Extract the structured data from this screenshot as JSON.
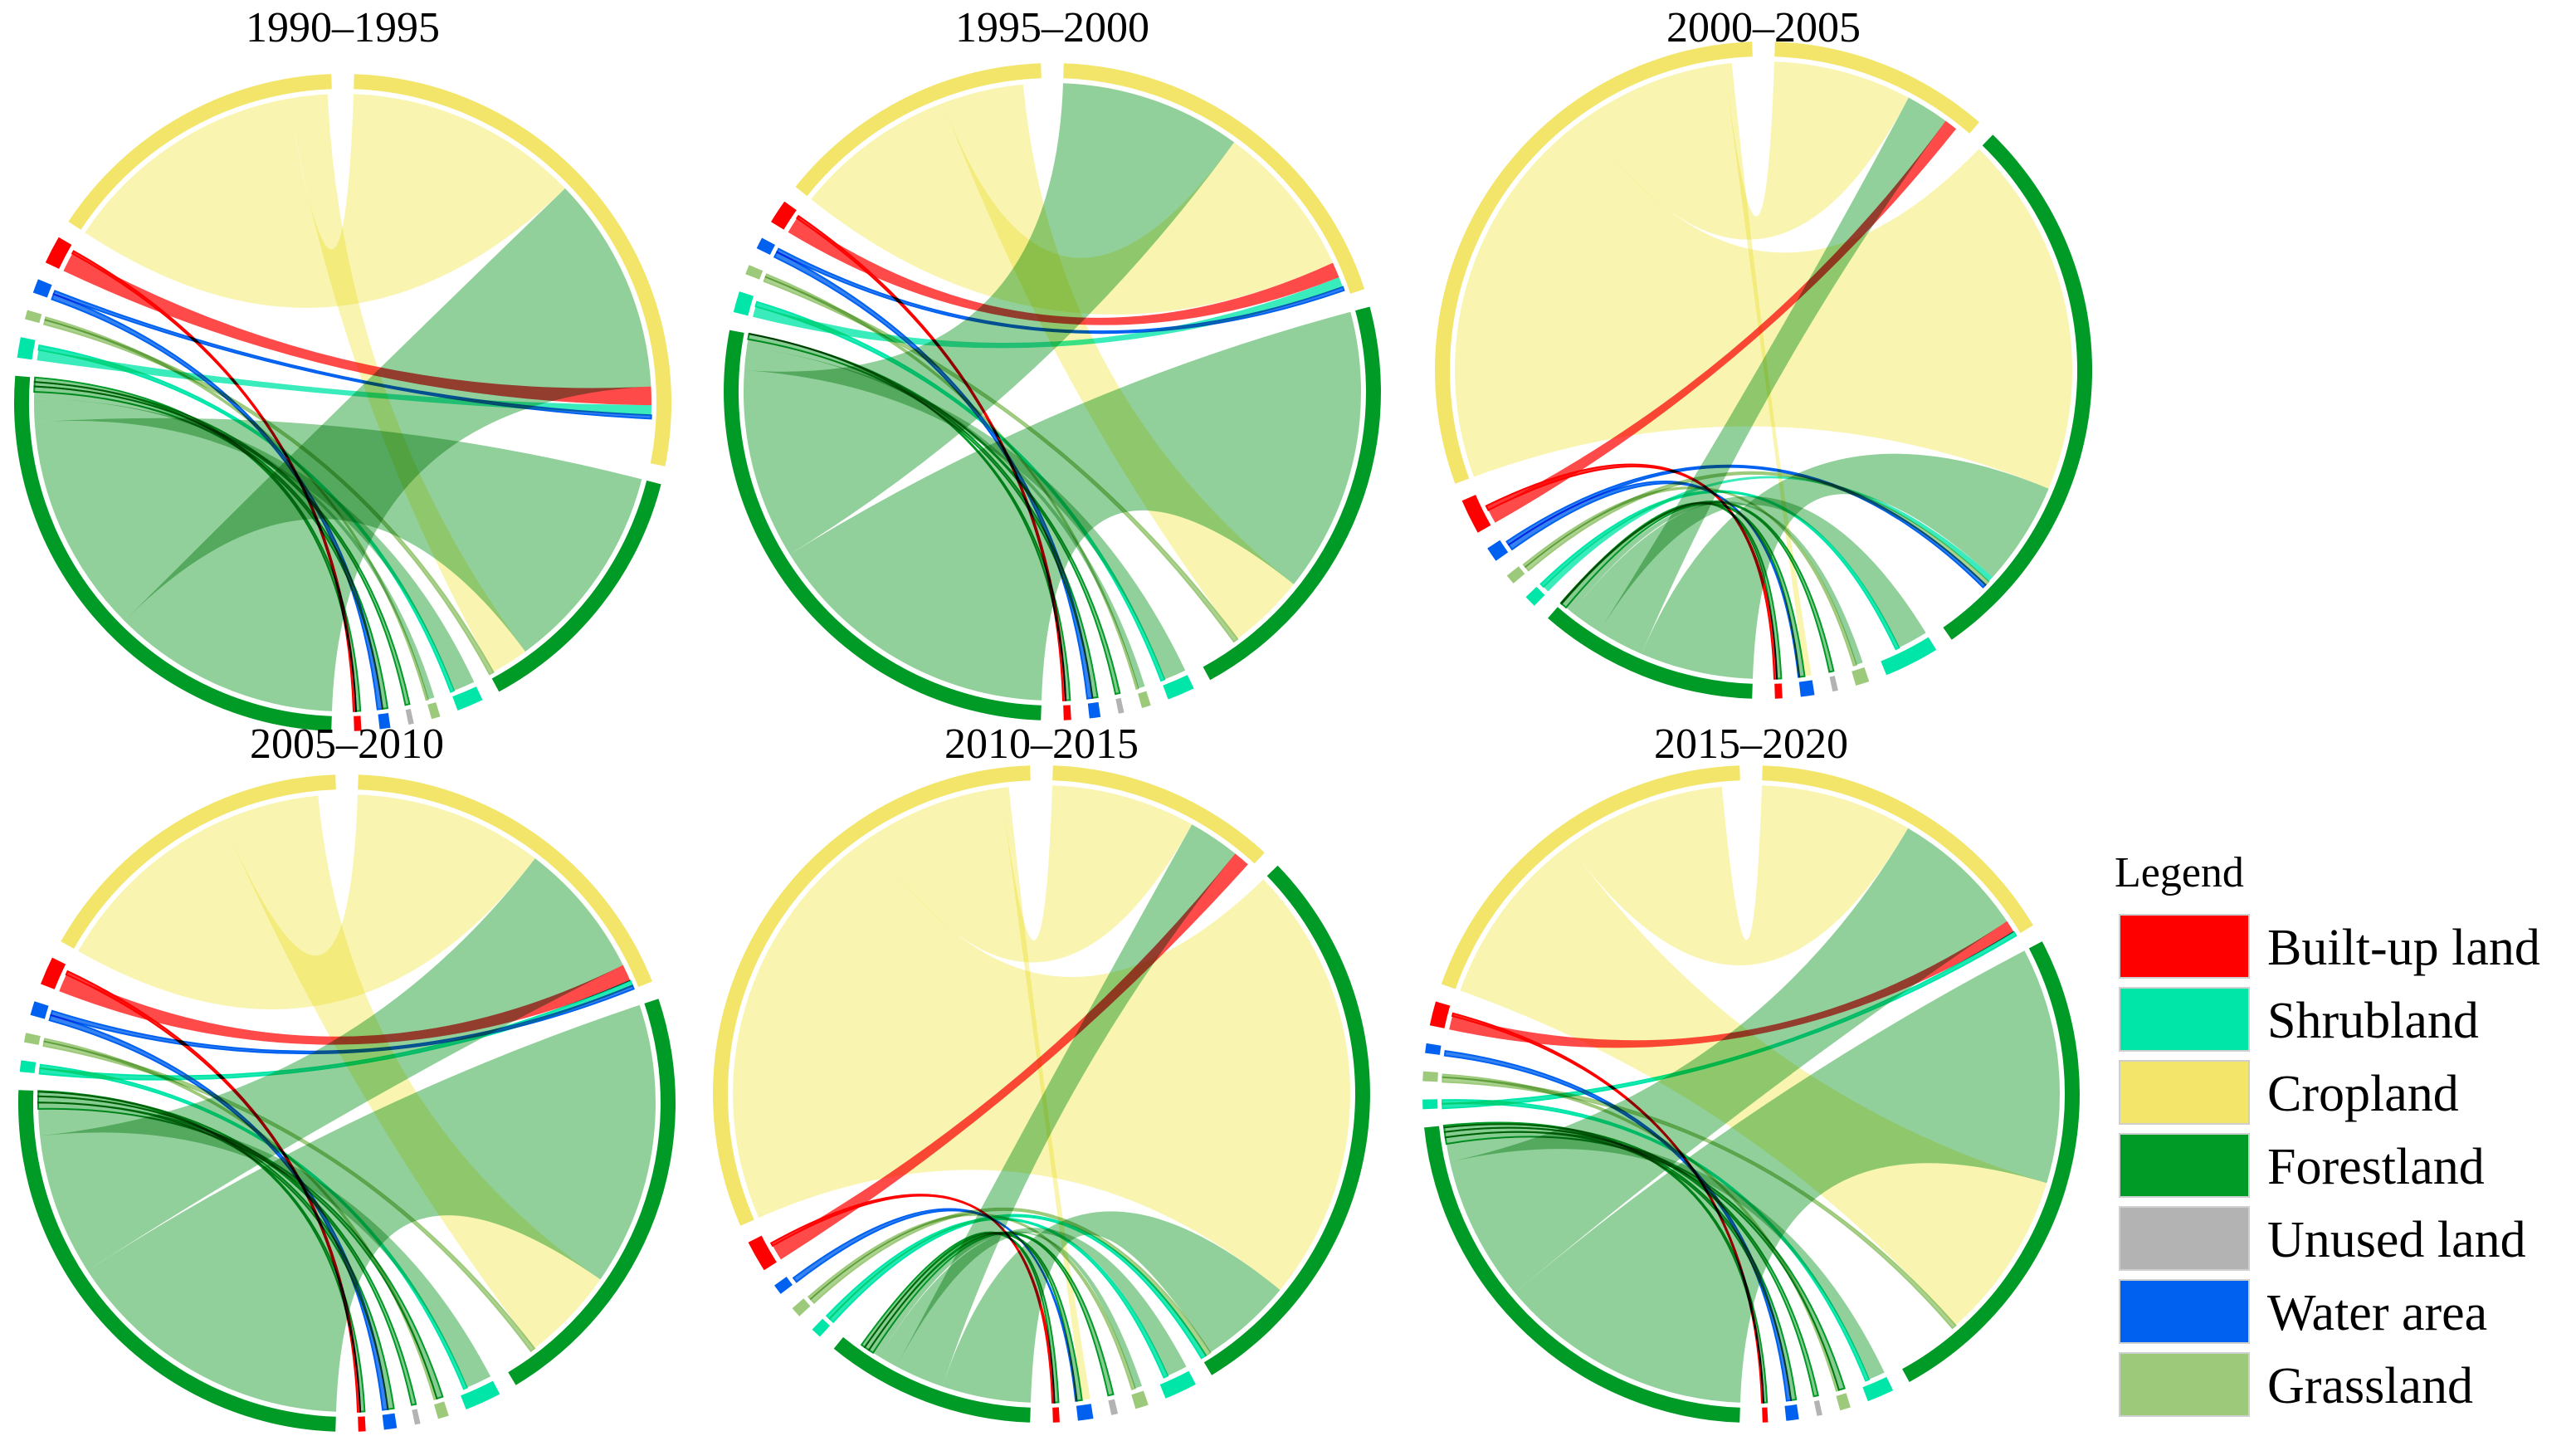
{
  "figure": {
    "legend_title": "Legend"
  },
  "chart_data": {
    "type": "chord",
    "categories": [
      {
        "key": "built",
        "name": "Built-up land",
        "color": "#ff0000",
        "ribbon_color": "#ff2a2a"
      },
      {
        "key": "shrub",
        "name": "Shrubland",
        "color": "#00e6a8",
        "ribbon_color": "#18e8b0"
      },
      {
        "key": "crop",
        "name": "Cropland",
        "color": "#f2e56a",
        "ribbon_color": "#f8f3a3"
      },
      {
        "key": "forest",
        "name": "Forestland",
        "color": "#009a27",
        "ribbon_color": "#7fc88a"
      },
      {
        "key": "unused",
        "name": "Unused land",
        "color": "#b3b3b3",
        "ribbon_color": "#c4c4c4"
      },
      {
        "key": "water",
        "name": "Water area",
        "color": "#0060f0",
        "ribbon_color": "#2a7cf0"
      },
      {
        "key": "grass",
        "name": "Grassland",
        "color": "#9cc97a",
        "ribbon_color": "#a8d08a"
      }
    ],
    "panels": [
      {
        "title": "1990–1995",
        "layout": "circle-right",
        "left_order": [
          "crop",
          "built",
          "water",
          "grass",
          "shrub",
          "forest"
        ],
        "right_order": [
          "crop",
          "forest",
          "shrub",
          "grass",
          "unused",
          "water",
          "built"
        ],
        "left_sizes": {
          "crop": 33,
          "built": 3,
          "water": 1.5,
          "grass": 1,
          "shrub": 2.2,
          "forest": 56
        },
        "right_sizes": {
          "crop": 63,
          "forest": 30,
          "shrub": 3,
          "grass": 1,
          "unused": 0.6,
          "water": 1.2,
          "built": 0.8
        },
        "flows": [
          {
            "from": "crop",
            "to": "crop",
            "value": 28
          },
          {
            "from": "crop",
            "to": "forest",
            "value": 4.5
          },
          {
            "from": "forest",
            "to": "crop",
            "value": 26
          },
          {
            "from": "forest",
            "to": "forest",
            "value": 25
          },
          {
            "from": "forest",
            "to": "shrub",
            "value": 2.6
          },
          {
            "from": "forest",
            "to": "grass",
            "value": 0.8
          },
          {
            "from": "forest",
            "to": "unused",
            "value": 0.5
          },
          {
            "from": "forest",
            "to": "water",
            "value": 0.6
          },
          {
            "from": "forest",
            "to": "built",
            "value": 0.5
          },
          {
            "from": "built",
            "to": "crop",
            "value": 2.2
          },
          {
            "from": "built",
            "to": "built",
            "value": 0.3
          },
          {
            "from": "water",
            "to": "water",
            "value": 0.6
          },
          {
            "from": "water",
            "to": "crop",
            "value": 0.4
          },
          {
            "from": "grass",
            "to": "forest",
            "value": 0.5
          },
          {
            "from": "grass",
            "to": "grass",
            "value": 0.3
          },
          {
            "from": "shrub",
            "to": "crop",
            "value": 1.2
          },
          {
            "from": "shrub",
            "to": "shrub",
            "value": 0.5
          }
        ]
      },
      {
        "title": "1995–2000",
        "layout": "circle-right",
        "left_order": [
          "crop",
          "built",
          "water",
          "grass",
          "shrub",
          "forest"
        ],
        "right_order": [
          "crop",
          "forest",
          "shrub",
          "grass",
          "unused",
          "water",
          "built"
        ],
        "left_sizes": {
          "crop": 29,
          "built": 2.5,
          "water": 1.2,
          "grass": 1,
          "shrub": 2.2,
          "forest": 58
        },
        "right_sizes": {
          "crop": 43,
          "forest": 47,
          "shrub": 3,
          "grass": 1,
          "unused": 0.6,
          "water": 1.2,
          "built": 0.8
        },
        "flows": [
          {
            "from": "crop",
            "to": "crop",
            "value": 18
          },
          {
            "from": "crop",
            "to": "forest",
            "value": 9
          },
          {
            "from": "forest",
            "to": "crop",
            "value": 21
          },
          {
            "from": "forest",
            "to": "forest",
            "value": 33
          },
          {
            "from": "forest",
            "to": "shrub",
            "value": 2.6
          },
          {
            "from": "forest",
            "to": "grass",
            "value": 0.8
          },
          {
            "from": "forest",
            "to": "unused",
            "value": 0.5
          },
          {
            "from": "forest",
            "to": "water",
            "value": 0.6
          },
          {
            "from": "forest",
            "to": "built",
            "value": 0.5
          },
          {
            "from": "built",
            "to": "crop",
            "value": 1.8
          },
          {
            "from": "built",
            "to": "built",
            "value": 0.3
          },
          {
            "from": "water",
            "to": "water",
            "value": 0.6
          },
          {
            "from": "water",
            "to": "crop",
            "value": 0.4
          },
          {
            "from": "grass",
            "to": "forest",
            "value": 0.5
          },
          {
            "from": "grass",
            "to": "grass",
            "value": 0.3
          },
          {
            "from": "shrub",
            "to": "crop",
            "value": 1.2
          },
          {
            "from": "shrub",
            "to": "shrub",
            "value": 0.5
          }
        ]
      },
      {
        "title": "2000–2005",
        "layout": "circle-left",
        "left_order": [
          "crop",
          "built",
          "water",
          "grass",
          "shrub",
          "forest"
        ],
        "right_order": [
          "crop",
          "forest",
          "shrub",
          "grass",
          "unused",
          "water",
          "built"
        ],
        "left_sizes": {
          "crop": 61,
          "built": 3.5,
          "water": 1.5,
          "grass": 1,
          "shrub": 1.2,
          "forest": 22
        },
        "right_sizes": {
          "crop": 24,
          "forest": 62,
          "shrub": 6,
          "grass": 1.5,
          "unused": 0.6,
          "water": 1.5,
          "built": 0.8
        },
        "flows": [
          {
            "from": "crop",
            "to": "crop",
            "value": 16
          },
          {
            "from": "crop",
            "to": "forest",
            "value": 42
          },
          {
            "from": "crop",
            "to": "water",
            "value": 0.8
          },
          {
            "from": "forest",
            "to": "crop",
            "value": 5
          },
          {
            "from": "forest",
            "to": "forest",
            "value": 12
          },
          {
            "from": "forest",
            "to": "shrub",
            "value": 3.5
          },
          {
            "from": "forest",
            "to": "grass",
            "value": 0.8
          },
          {
            "from": "forest",
            "to": "unused",
            "value": 0.5
          },
          {
            "from": "forest",
            "to": "water",
            "value": 0.6
          },
          {
            "from": "forest",
            "to": "built",
            "value": 0.5
          },
          {
            "from": "built",
            "to": "crop",
            "value": 1.5
          },
          {
            "from": "built",
            "to": "built",
            "value": 0.5
          },
          {
            "from": "water",
            "to": "water",
            "value": 0.6
          },
          {
            "from": "water",
            "to": "forest",
            "value": 0.4
          },
          {
            "from": "grass",
            "to": "forest",
            "value": 0.5
          },
          {
            "from": "grass",
            "to": "grass",
            "value": 0.3
          },
          {
            "from": "shrub",
            "to": "forest",
            "value": 0.7
          },
          {
            "from": "shrub",
            "to": "shrub",
            "value": 0.4
          }
        ]
      },
      {
        "title": "2005–2010",
        "layout": "circle-right",
        "left_order": [
          "crop",
          "built",
          "water",
          "grass",
          "shrub",
          "forest"
        ],
        "right_order": [
          "crop",
          "forest",
          "shrub",
          "grass",
          "unused",
          "water",
          "built"
        ],
        "left_sizes": {
          "crop": 35,
          "built": 3,
          "water": 1.5,
          "grass": 1,
          "shrub": 1.2,
          "forest": 54
        },
        "right_sizes": {
          "crop": 41,
          "forest": 48,
          "shrub": 4,
          "grass": 1.2,
          "unused": 0.6,
          "water": 1.4,
          "built": 0.8
        },
        "flows": [
          {
            "from": "crop",
            "to": "crop",
            "value": 22
          },
          {
            "from": "crop",
            "to": "forest",
            "value": 11
          },
          {
            "from": "forest",
            "to": "crop",
            "value": 16
          },
          {
            "from": "forest",
            "to": "forest",
            "value": 33
          },
          {
            "from": "forest",
            "to": "shrub",
            "value": 3
          },
          {
            "from": "forest",
            "to": "grass",
            "value": 0.7
          },
          {
            "from": "forest",
            "to": "unused",
            "value": 0.5
          },
          {
            "from": "forest",
            "to": "water",
            "value": 0.7
          },
          {
            "from": "forest",
            "to": "built",
            "value": 0.5
          },
          {
            "from": "built",
            "to": "crop",
            "value": 2
          },
          {
            "from": "built",
            "to": "built",
            "value": 0.4
          },
          {
            "from": "water",
            "to": "water",
            "value": 0.6
          },
          {
            "from": "water",
            "to": "crop",
            "value": 0.5
          },
          {
            "from": "grass",
            "to": "forest",
            "value": 0.5
          },
          {
            "from": "grass",
            "to": "grass",
            "value": 0.3
          },
          {
            "from": "shrub",
            "to": "crop",
            "value": 0.6
          },
          {
            "from": "shrub",
            "to": "shrub",
            "value": 0.4
          }
        ]
      },
      {
        "title": "2010–2015",
        "layout": "circle-left",
        "left_order": [
          "crop",
          "built",
          "water",
          "grass",
          "shrub",
          "forest"
        ],
        "right_order": [
          "crop",
          "forest",
          "shrub",
          "grass",
          "unused",
          "water",
          "built"
        ],
        "left_sizes": {
          "crop": 60,
          "built": 3,
          "water": 1,
          "grass": 1,
          "shrub": 1,
          "forest": 20
        },
        "right_sizes": {
          "crop": 21,
          "forest": 53,
          "shrub": 3,
          "grass": 1.2,
          "unused": 0.6,
          "water": 1.4,
          "built": 0.6
        },
        "flows": [
          {
            "from": "crop",
            "to": "crop",
            "value": 14
          },
          {
            "from": "crop",
            "to": "forest",
            "value": 43
          },
          {
            "from": "crop",
            "to": "water",
            "value": 0.8
          },
          {
            "from": "forest",
            "to": "crop",
            "value": 5
          },
          {
            "from": "forest",
            "to": "forest",
            "value": 9
          },
          {
            "from": "forest",
            "to": "shrub",
            "value": 2
          },
          {
            "from": "forest",
            "to": "grass",
            "value": 0.7
          },
          {
            "from": "forest",
            "to": "unused",
            "value": 0.5
          },
          {
            "from": "forest",
            "to": "water",
            "value": 0.5
          },
          {
            "from": "forest",
            "to": "built",
            "value": 0.4
          },
          {
            "from": "built",
            "to": "crop",
            "value": 1.6
          },
          {
            "from": "built",
            "to": "built",
            "value": 0.3
          },
          {
            "from": "water",
            "to": "water",
            "value": 0.5
          },
          {
            "from": "grass",
            "to": "forest",
            "value": 0.5
          },
          {
            "from": "grass",
            "to": "grass",
            "value": 0.3
          },
          {
            "from": "shrub",
            "to": "forest",
            "value": 0.5
          },
          {
            "from": "shrub",
            "to": "shrub",
            "value": 0.4
          }
        ]
      },
      {
        "title": "2015–2020",
        "layout": "circle-right",
        "left_order": [
          "crop",
          "built",
          "water",
          "grass",
          "shrub",
          "forest"
        ],
        "right_order": [
          "crop",
          "forest",
          "shrub",
          "grass",
          "unused",
          "water",
          "built"
        ],
        "left_sizes": {
          "crop": 40,
          "built": 2.5,
          "water": 1,
          "grass": 1,
          "shrub": 1,
          "forest": 48
        },
        "right_sizes": {
          "crop": 36,
          "forest": 56,
          "shrub": 3,
          "grass": 1.2,
          "unused": 0.6,
          "water": 1.4,
          "built": 0.6
        },
        "flows": [
          {
            "from": "crop",
            "to": "crop",
            "value": 18
          },
          {
            "from": "crop",
            "to": "forest",
            "value": 20
          },
          {
            "from": "forest",
            "to": "crop",
            "value": 16
          },
          {
            "from": "forest",
            "to": "forest",
            "value": 28
          },
          {
            "from": "forest",
            "to": "shrub",
            "value": 2
          },
          {
            "from": "forest",
            "to": "grass",
            "value": 0.7
          },
          {
            "from": "forest",
            "to": "unused",
            "value": 0.5
          },
          {
            "from": "forest",
            "to": "water",
            "value": 0.6
          },
          {
            "from": "forest",
            "to": "built",
            "value": 0.4
          },
          {
            "from": "built",
            "to": "crop",
            "value": 1.5
          },
          {
            "from": "built",
            "to": "built",
            "value": 0.3
          },
          {
            "from": "water",
            "to": "water",
            "value": 0.5
          },
          {
            "from": "grass",
            "to": "forest",
            "value": 0.5
          },
          {
            "from": "grass",
            "to": "grass",
            "value": 0.3
          },
          {
            "from": "shrub",
            "to": "crop",
            "value": 0.5
          },
          {
            "from": "shrub",
            "to": "shrub",
            "value": 0.4
          }
        ]
      }
    ]
  }
}
